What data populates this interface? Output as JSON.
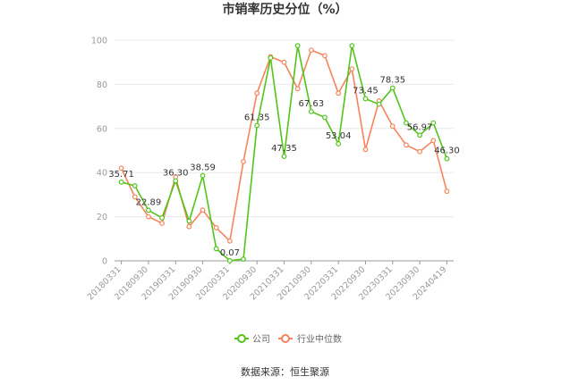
{
  "chart_data": {
    "type": "line",
    "title": "市销率历史分位（%）",
    "xlabel": "",
    "ylabel": "",
    "ylim": [
      0,
      100
    ],
    "yticks": [
      0,
      20,
      40,
      60,
      80,
      100
    ],
    "grid": true,
    "legend_position": "bottom",
    "x": [
      "20180331",
      "20180630",
      "20180930",
      "20181231",
      "20190331",
      "20190630",
      "20190930",
      "20191231",
      "20200331",
      "20200630",
      "20200930",
      "20201231",
      "20210331",
      "20210630",
      "20210930",
      "20211231",
      "20220331",
      "20220630",
      "20220930",
      "20221231",
      "20230331",
      "20230630",
      "20230930",
      "20231231",
      "20240419"
    ],
    "x_tick_labels": [
      "20180331",
      "20180930",
      "20190331",
      "20190930",
      "20200331",
      "20200930",
      "20210331",
      "20210930",
      "20220331",
      "20220930",
      "20230331",
      "20230930",
      "20240419"
    ],
    "series": [
      {
        "name": "公司",
        "color": "#52c41a",
        "values": [
          35.71,
          34.0,
          22.89,
          19.5,
          36.3,
          18.0,
          38.59,
          5.5,
          0.07,
          0.8,
          61.35,
          92.0,
          47.35,
          97.5,
          67.63,
          65.0,
          53.04,
          97.5,
          73.45,
          71.0,
          78.35,
          62.5,
          56.97,
          62.5,
          46.3
        ],
        "labels": {
          "0": "35.71",
          "2": "22.89",
          "4": "36.30",
          "6": "38.59",
          "8": "0.07",
          "10": "61.35",
          "12": "47.35",
          "14": "67.63",
          "16": "53.04",
          "18": "73.45",
          "20": "78.35",
          "22": "56.97",
          "24": "46.30"
        }
      },
      {
        "name": "行业中位数",
        "color": "#f5845c",
        "values": [
          42.0,
          29.0,
          20.0,
          17.0,
          38.0,
          15.5,
          23.0,
          15.0,
          9.0,
          45.0,
          76.0,
          92.5,
          90.0,
          78.0,
          95.5,
          93.0,
          76.0,
          87.0,
          50.5,
          72.5,
          61.0,
          52.5,
          49.5,
          54.5,
          31.5
        ]
      }
    ],
    "source": "数据来源：恒生聚源"
  }
}
